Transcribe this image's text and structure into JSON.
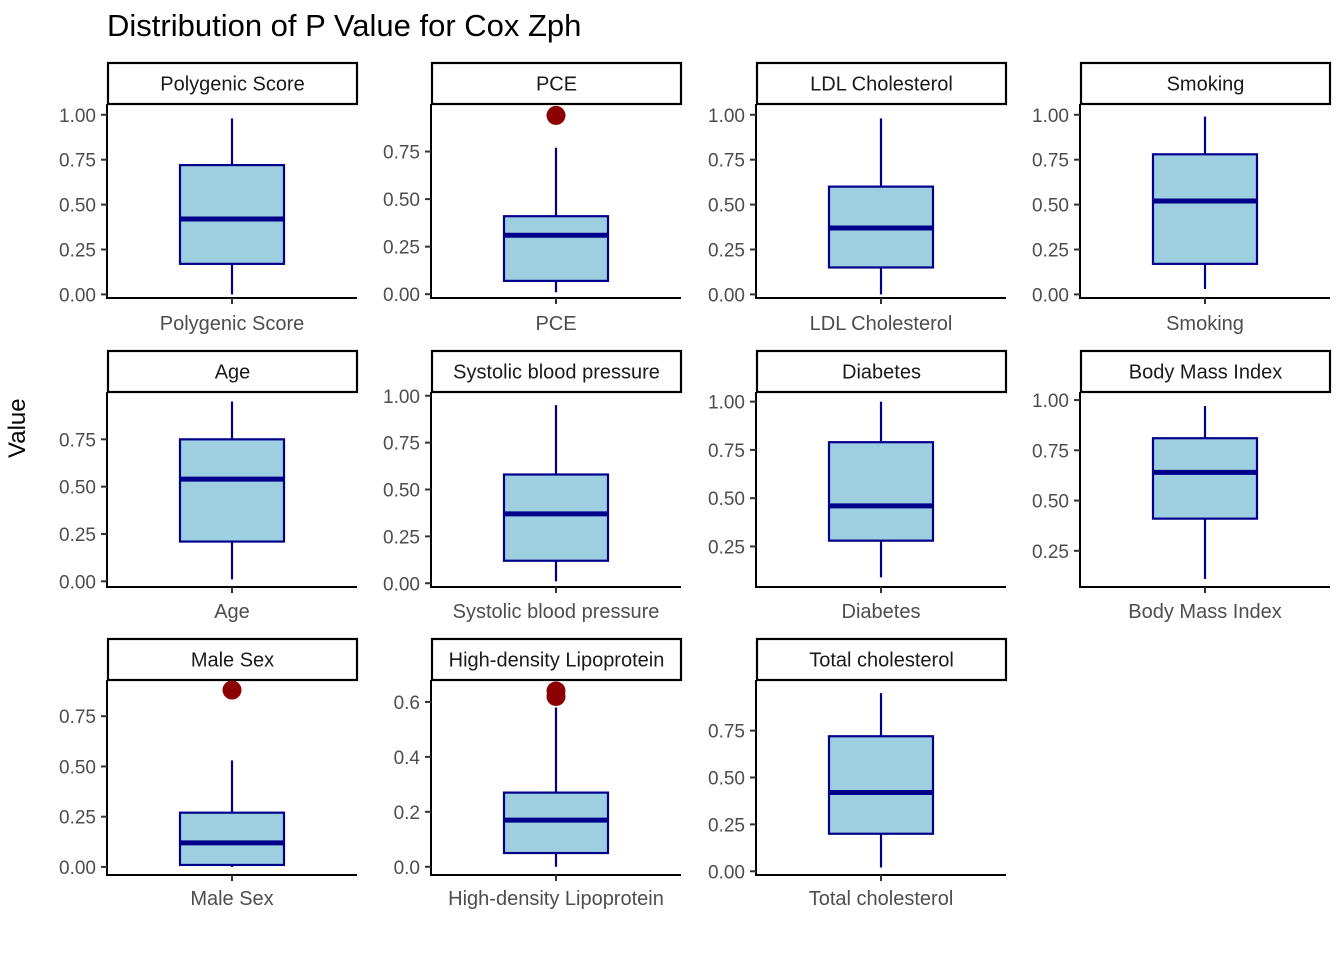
{
  "chart_data": {
    "type": "boxplot",
    "title": "Distribution of P Value for Cox Zph",
    "ylabel": "Value",
    "xlabel": "",
    "facet_layout": "3 rows x 4 columns",
    "colors": {
      "box_fill": "#9ecfe1",
      "box_line": "#00008b",
      "outlier": "#8b0000",
      "axis": "#000000",
      "tick_text": "#4d4d4d"
    },
    "facets": [
      {
        "name": "Polygenic Score",
        "category": "Polygenic Score",
        "ylim": [
          -0.02,
          1.06
        ],
        "yticks": [
          0,
          0.25,
          0.5,
          0.75,
          1.0
        ],
        "tick_labels": [
          "0.00",
          "0.25",
          "0.50",
          "0.75",
          "1.00"
        ],
        "whisker_low": 0.0,
        "q1": 0.17,
        "median": 0.42,
        "q3": 0.72,
        "whisker_high": 0.98,
        "outliers": []
      },
      {
        "name": "PCE",
        "category": "PCE",
        "ylim": [
          -0.02,
          1.0
        ],
        "yticks": [
          0,
          0.25,
          0.5,
          0.75
        ],
        "tick_labels": [
          "0.00",
          "0.25",
          "0.50",
          "0.75"
        ],
        "whisker_low": 0.01,
        "q1": 0.07,
        "median": 0.31,
        "q3": 0.41,
        "whisker_high": 0.77,
        "outliers": [
          0.94
        ]
      },
      {
        "name": "LDL Cholesterol",
        "category": "LDL Cholesterol",
        "ylim": [
          -0.02,
          1.06
        ],
        "yticks": [
          0,
          0.25,
          0.5,
          0.75,
          1.0
        ],
        "tick_labels": [
          "0.00",
          "0.25",
          "0.50",
          "0.75",
          "1.00"
        ],
        "whisker_low": 0.0,
        "q1": 0.15,
        "median": 0.37,
        "q3": 0.6,
        "whisker_high": 0.98,
        "outliers": []
      },
      {
        "name": "Smoking",
        "category": "Smoking",
        "ylim": [
          -0.02,
          1.06
        ],
        "yticks": [
          0,
          0.25,
          0.5,
          0.75,
          1.0
        ],
        "tick_labels": [
          "0.00",
          "0.25",
          "0.50",
          "0.75",
          "1.00"
        ],
        "whisker_low": 0.03,
        "q1": 0.17,
        "median": 0.52,
        "q3": 0.78,
        "whisker_high": 0.99,
        "outliers": []
      },
      {
        "name": "Age",
        "category": "Age",
        "ylim": [
          -0.03,
          1.0
        ],
        "yticks": [
          0,
          0.25,
          0.5,
          0.75
        ],
        "tick_labels": [
          "0.00",
          "0.25",
          "0.50",
          "0.75"
        ],
        "whisker_low": 0.01,
        "q1": 0.21,
        "median": 0.54,
        "q3": 0.75,
        "whisker_high": 0.95,
        "outliers": []
      },
      {
        "name": "Systolic blood pressure",
        "category": "Systolic blood pressure",
        "ylim": [
          -0.02,
          1.02
        ],
        "yticks": [
          0,
          0.25,
          0.5,
          0.75,
          1.0
        ],
        "tick_labels": [
          "0.00",
          "0.25",
          "0.50",
          "0.75",
          "1.00"
        ],
        "whisker_low": 0.01,
        "q1": 0.12,
        "median": 0.37,
        "q3": 0.58,
        "whisker_high": 0.95,
        "outliers": []
      },
      {
        "name": "Diabetes",
        "category": "Diabetes",
        "ylim": [
          0.04,
          1.05
        ],
        "yticks": [
          0.25,
          0.5,
          0.75,
          1.0
        ],
        "tick_labels": [
          "0.25",
          "0.50",
          "0.75",
          "1.00"
        ],
        "whisker_low": 0.09,
        "q1": 0.28,
        "median": 0.46,
        "q3": 0.79,
        "whisker_high": 1.0,
        "outliers": []
      },
      {
        "name": "Body Mass Index",
        "category": "Body Mass Index",
        "ylim": [
          0.07,
          1.04
        ],
        "yticks": [
          0.25,
          0.5,
          0.75,
          1.0
        ],
        "tick_labels": [
          "0.25",
          "0.50",
          "0.75",
          "1.00"
        ],
        "whisker_low": 0.11,
        "q1": 0.41,
        "median": 0.64,
        "q3": 0.81,
        "whisker_high": 0.97,
        "outliers": []
      },
      {
        "name": "Male Sex",
        "category": "Male Sex",
        "ylim": [
          -0.04,
          0.93
        ],
        "yticks": [
          0,
          0.25,
          0.5,
          0.75
        ],
        "tick_labels": [
          "0.00",
          "0.25",
          "0.50",
          "0.75"
        ],
        "whisker_low": 0.0,
        "q1": 0.01,
        "median": 0.12,
        "q3": 0.27,
        "whisker_high": 0.53,
        "outliers": [
          0.88
        ]
      },
      {
        "name": "High-density Lipoprotein",
        "category": "High-density Lipoprotein",
        "ylim": [
          -0.03,
          0.68
        ],
        "yticks": [
          0,
          0.2,
          0.4,
          0.6
        ],
        "tick_labels": [
          "0.0",
          "0.2",
          "0.4",
          "0.6"
        ],
        "whisker_low": 0.0,
        "q1": 0.05,
        "median": 0.17,
        "q3": 0.27,
        "whisker_high": 0.58,
        "outliers": [
          0.62,
          0.64
        ]
      },
      {
        "name": "Total cholesterol",
        "category": "Total cholesterol",
        "ylim": [
          -0.02,
          1.02
        ],
        "yticks": [
          0,
          0.25,
          0.5,
          0.75
        ],
        "tick_labels": [
          "0.00",
          "0.25",
          "0.50",
          "0.75"
        ],
        "whisker_low": 0.02,
        "q1": 0.2,
        "median": 0.42,
        "q3": 0.72,
        "whisker_high": 0.95,
        "outliers": []
      }
    ]
  }
}
